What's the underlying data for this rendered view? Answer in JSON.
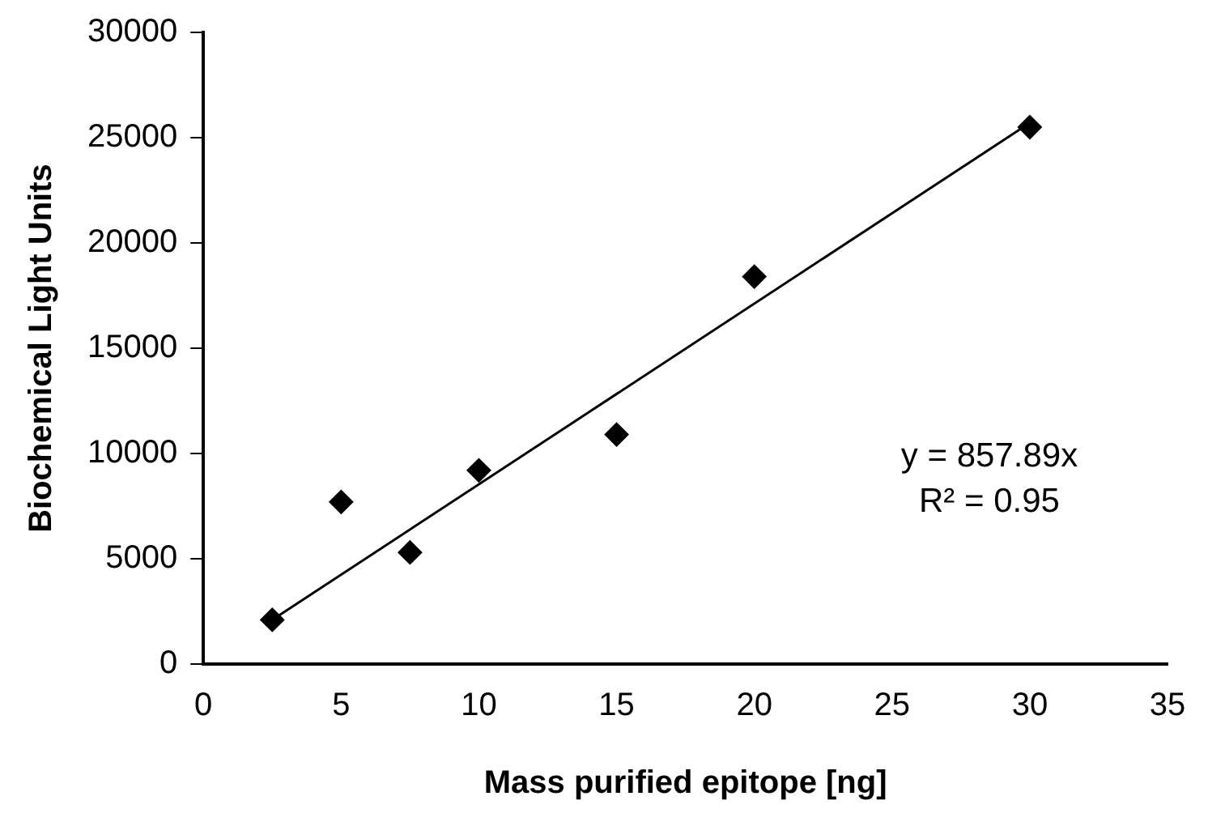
{
  "chart_data": {
    "type": "scatter",
    "xlabel": "Mass purified epitope [ng]",
    "ylabel": "Biochemical Light Units",
    "x": [
      2.5,
      5,
      7.5,
      10,
      15,
      20,
      30
    ],
    "series": [
      {
        "color": "#000000",
        "marker": "diamond",
        "values": [
          2100,
          7700,
          5300,
          9200,
          10900,
          18400,
          25500
        ]
      },
      {
        "type": "line",
        "color": "#000000",
        "marker": "none",
        "x": [
          2.5,
          30
        ],
        "values": [
          2100,
          25700
        ]
      }
    ],
    "xlim": [
      0,
      35
    ],
    "xticks": [
      0,
      5,
      10,
      15,
      20,
      25,
      30,
      35
    ],
    "ylim": [
      0,
      30000
    ],
    "yticks": [
      0,
      5000,
      10000,
      15000,
      20000,
      25000,
      30000
    ],
    "grid": false,
    "legend": false,
    "annotations": [
      "y = 857.89x",
      "R² = 0.95"
    ]
  }
}
